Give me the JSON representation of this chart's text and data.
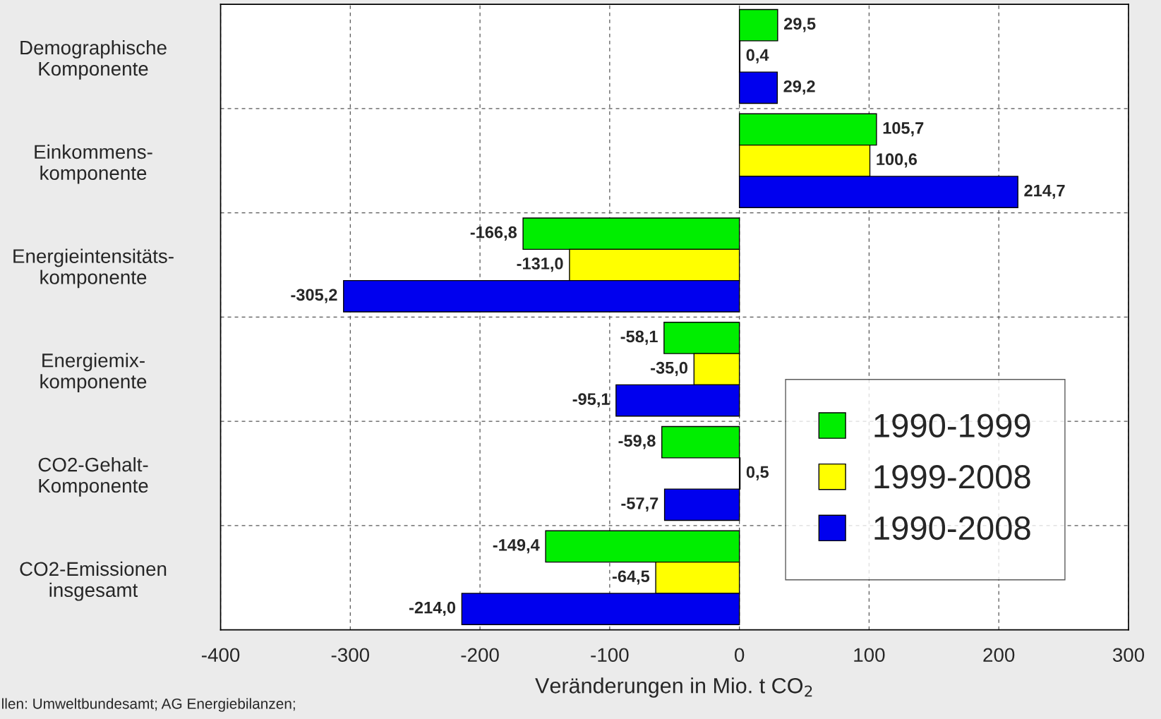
{
  "chart_data": {
    "type": "bar",
    "orientation": "horizontal",
    "xlabel": "Veränderungen in Mio. t CO$_{2}$",
    "categories": [
      "Demographische\nKomponente",
      "Einkommens-\nkomponente",
      "Energieintensitäts-\nkomponente",
      "Energiemix-\nkomponente",
      "CO2-Gehalt-\nKomponente",
      "CO2-Emissionen\ninsgesamt"
    ],
    "series": [
      {
        "name": "1990-1999",
        "color": "#00ee00",
        "values": [
          29.5,
          105.7,
          -166.8,
          -58.1,
          -59.8,
          -149.4
        ],
        "value_labels": [
          "29,5",
          "105,7",
          "-166,8",
          "-58,1",
          "-59,8",
          "-149,4"
        ]
      },
      {
        "name": "1999-2008",
        "color": "#ffff00",
        "values": [
          0.4,
          100.6,
          -131.0,
          -35.0,
          0.5,
          -64.5
        ],
        "value_labels": [
          "0,4",
          "100,6",
          "-131,0",
          "-35,0",
          "0,5",
          "-64,5"
        ]
      },
      {
        "name": "1990-2008",
        "color": "#0000ee",
        "values": [
          29.2,
          214.7,
          -305.2,
          -95.1,
          -57.7,
          -214.0
        ],
        "value_labels": [
          "29,2",
          "214,7",
          "-305,2",
          "-95,1",
          "-57,7",
          "-214,0"
        ]
      }
    ],
    "xlim": [
      -400,
      300
    ],
    "xticks": [
      -400,
      -300,
      -200,
      -100,
      0,
      100,
      200,
      300
    ],
    "grid": true,
    "legend": "bottom right",
    "annotations": [
      "llen: Umweltbundesamt; AG Energiebilanzen;"
    ]
  }
}
